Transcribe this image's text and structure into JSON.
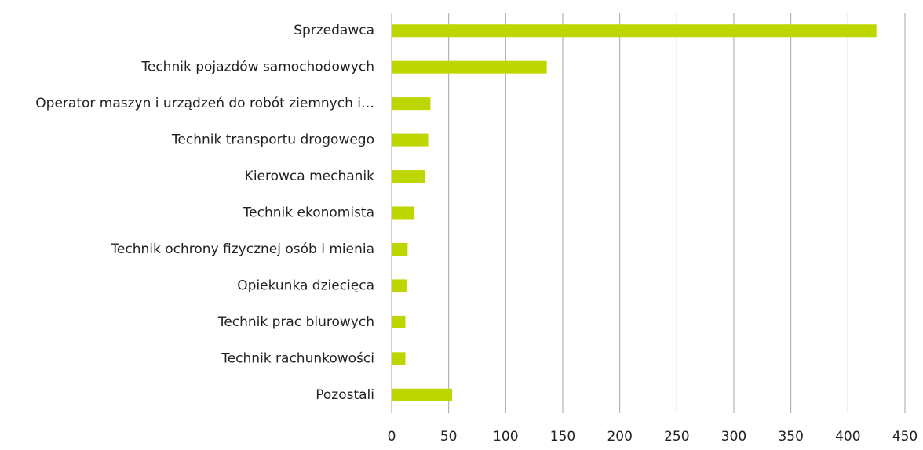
{
  "chart_data": {
    "type": "bar",
    "orientation": "horizontal",
    "categories": [
      "Sprzedawca",
      "Technik pojazdów samochodowych",
      "Operator maszyn i urządzeń do robót ziemnych i…",
      "Technik transportu drogowego",
      "Kierowca mechanik",
      "Technik ekonomista",
      "Technik ochrony fizycznej osób i mienia",
      "Opiekunka dziecięca",
      "Technik prac biurowych",
      "Technik rachunkowości",
      "Pozostali"
    ],
    "values": [
      425,
      136,
      34,
      32,
      29,
      20,
      14,
      13,
      12,
      12,
      53
    ],
    "color": "#bed600",
    "xlim": [
      0,
      450
    ],
    "xticks": [
      0,
      50,
      100,
      150,
      200,
      250,
      300,
      350,
      400,
      450
    ],
    "grid": true
  }
}
